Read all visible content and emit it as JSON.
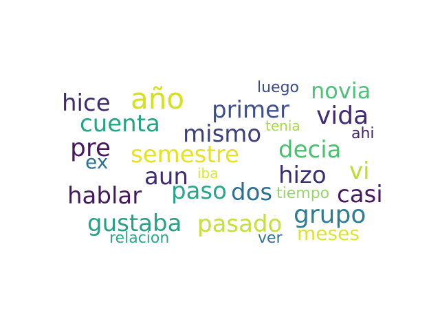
{
  "words": [
    {
      "text": "año",
      "color": "#d3e21a"
    },
    {
      "text": "hice",
      "color": "#3d2a6b"
    },
    {
      "text": "primer",
      "color": "#3e4f8a"
    },
    {
      "text": "novia",
      "color": "#4cc27a"
    },
    {
      "text": "luego",
      "color": "#3b4b86"
    },
    {
      "text": "vida",
      "color": "#3f2a74"
    },
    {
      "text": "cuenta",
      "color": "#23a584"
    },
    {
      "text": "mismo",
      "color": "#3b3f80"
    },
    {
      "text": "tenia",
      "color": "#a6d84a"
    },
    {
      "text": "ahi",
      "color": "#45246f"
    },
    {
      "text": "pre",
      "color": "#45185f"
    },
    {
      "text": "semestre",
      "color": "#e6e21f"
    },
    {
      "text": "decia",
      "color": "#47c16e"
    },
    {
      "text": "ex",
      "color": "#2f7190"
    },
    {
      "text": "aun",
      "color": "#3d2a70"
    },
    {
      "text": "iba",
      "color": "#d7e53a"
    },
    {
      "text": "hizo",
      "color": "#3b2d72"
    },
    {
      "text": "vi",
      "color": "#b9de2c"
    },
    {
      "text": "hablar",
      "color": "#45195f"
    },
    {
      "text": "paso",
      "color": "#26a78a"
    },
    {
      "text": "dos",
      "color": "#2d6f8e"
    },
    {
      "text": "tiempo",
      "color": "#98d66a"
    },
    {
      "text": "casi",
      "color": "#45195f"
    },
    {
      "text": "grupo",
      "color": "#2d7f90"
    },
    {
      "text": "gustaba",
      "color": "#25a284"
    },
    {
      "text": "pasado",
      "color": "#c6e03a"
    },
    {
      "text": "relacion",
      "color": "#2ba78a"
    },
    {
      "text": "ver",
      "color": "#30728e"
    },
    {
      "text": "meses",
      "color": "#dde336"
    }
  ]
}
